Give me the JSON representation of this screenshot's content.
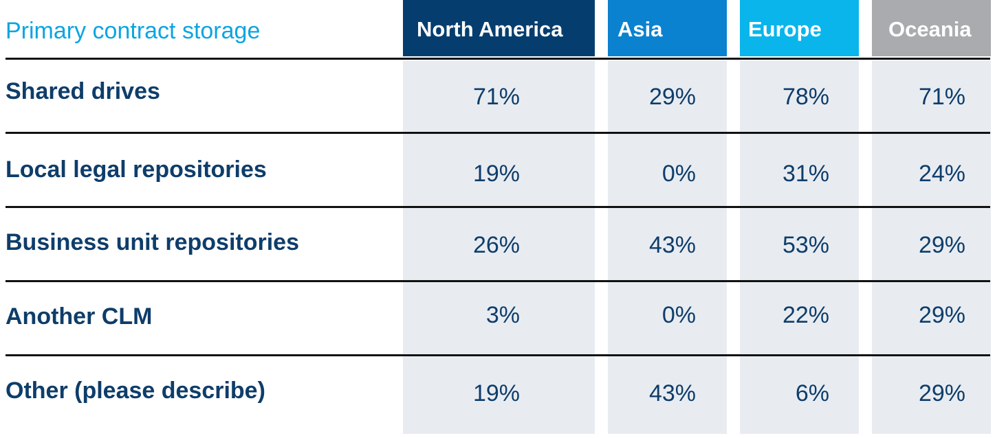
{
  "chart_data": {
    "type": "table",
    "title": "Primary contract storage",
    "columns": [
      {
        "name": "North America",
        "color": "#053e6e"
      },
      {
        "name": "Asia",
        "color": "#0a82cf"
      },
      {
        "name": "Europe",
        "color": "#0ab5ec"
      },
      {
        "name": "Oceania",
        "color": "#a9abae"
      }
    ],
    "rows": [
      {
        "label": "Shared drives",
        "values": [
          "71%",
          "29%",
          "78%",
          "71%"
        ]
      },
      {
        "label": "Local legal repositories",
        "values": [
          "19%",
          "0%",
          "31%",
          "24%"
        ]
      },
      {
        "label": "Business unit repositories",
        "values": [
          "26%",
          "43%",
          "53%",
          "29%"
        ]
      },
      {
        "label": "Another CLM",
        "values": [
          "3%",
          "0%",
          "22%",
          "29%"
        ]
      },
      {
        "label": "Other (please describe)",
        "values": [
          "19%",
          "43%",
          "6%",
          "29%"
        ]
      }
    ]
  }
}
